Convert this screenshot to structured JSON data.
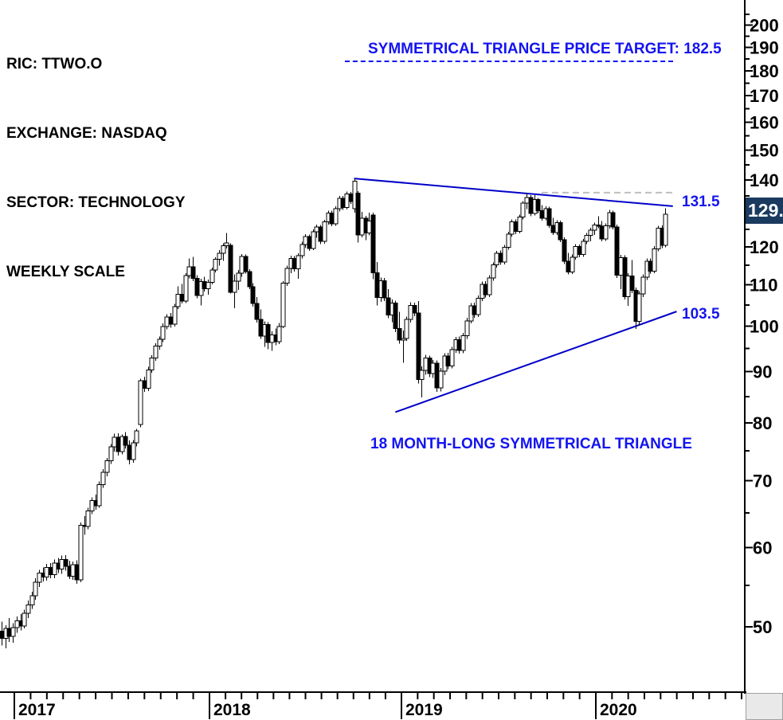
{
  "header": {
    "ric": "RIC: TTWO.O",
    "exchange": "EXCHANGE: NASDAQ",
    "sector": "SECTOR: TECHNOLOGY",
    "scale": "WEEKLY SCALE"
  },
  "annotations": {
    "price_target": "SYMMETRICAL TRIANGLE PRICE TARGET: 182.5",
    "pattern_label": "18 MONTH-LONG SYMMETRICAL TRIANGLE",
    "upper_level_label": "131.5",
    "lower_level_label": "103.5",
    "last_price_tag": "129."
  },
  "colors": {
    "annotation_blue": "#1414f0",
    "trendline_blue": "#0000c8",
    "dashed_grey": "#bfbfbf",
    "axis_black": "#000000",
    "candle_up_fill": "#ffffff",
    "candle_down_fill": "#000000",
    "price_tag_bg": "#1b3a5f",
    "price_tag_text": "#ffffff"
  },
  "chart_data": {
    "type": "candlestick",
    "symbol": "TTWO.O",
    "timeframe": "weekly",
    "title": "TTWO.O weekly candlestick chart with 18 month-long symmetrical triangle",
    "y_axis": {
      "scale": "log",
      "visible_tick_labels": [
        200,
        190,
        180,
        170,
        160,
        150,
        140,
        120,
        110,
        100,
        90,
        80,
        70,
        60,
        50
      ],
      "minor_tick_step": 5,
      "range": [
        46,
        207
      ],
      "last_price": 129.4
    },
    "x_axis": {
      "year_labels": [
        "2017",
        "2018",
        "2019",
        "2020"
      ],
      "weeks_visible": 198,
      "first_candle_approx": "2016-12"
    },
    "grid": false,
    "legend": false,
    "trendlines": [
      {
        "name": "triangle-upper-boundary",
        "from_week": 94,
        "from_price": 140.5,
        "to_week": 179,
        "to_price": 131.8
      },
      {
        "name": "triangle-lower-boundary",
        "from_week": 105,
        "from_price": 82.0,
        "to_week": 180,
        "to_price": 103.4
      }
    ],
    "dashed_resistance": {
      "from_week": 144,
      "to_week": 179,
      "price": 136.0
    },
    "candles_ohlc": [
      [
        49.5,
        50.6,
        47.9,
        48.7
      ],
      [
        48.7,
        50.2,
        47.6,
        49.8
      ],
      [
        49.8,
        51.0,
        48.3,
        48.9
      ],
      [
        48.9,
        50.4,
        48.2,
        49.9
      ],
      [
        49.9,
        51.2,
        49.3,
        50.7
      ],
      [
        50.7,
        51.5,
        49.6,
        50.1
      ],
      [
        50.1,
        52.0,
        49.8,
        51.6
      ],
      [
        51.6,
        53.1,
        51.0,
        52.6
      ],
      [
        52.6,
        54.2,
        52.1,
        53.7
      ],
      [
        53.7,
        55.9,
        53.2,
        55.4
      ],
      [
        55.4,
        57.0,
        54.8,
        56.6
      ],
      [
        56.6,
        57.3,
        55.5,
        56.1
      ],
      [
        56.1,
        57.8,
        55.6,
        57.3
      ],
      [
        57.3,
        57.9,
        55.9,
        56.4
      ],
      [
        56.4,
        58.4,
        55.9,
        57.9
      ],
      [
        57.9,
        58.6,
        56.6,
        57.1
      ],
      [
        57.1,
        58.9,
        56.5,
        58.4
      ],
      [
        58.4,
        59.0,
        56.9,
        57.5
      ],
      [
        57.5,
        58.2,
        55.8,
        56.2
      ],
      [
        56.2,
        58.1,
        55.7,
        57.7
      ],
      [
        57.7,
        58.3,
        55.2,
        55.7
      ],
      [
        55.7,
        63.6,
        55.4,
        63.2
      ],
      [
        63.2,
        64.5,
        61.8,
        63.0
      ],
      [
        63.0,
        65.8,
        62.6,
        65.3
      ],
      [
        65.3,
        67.4,
        64.8,
        66.9
      ],
      [
        66.9,
        67.8,
        65.5,
        66.1
      ],
      [
        66.1,
        69.9,
        65.8,
        69.4
      ],
      [
        69.4,
        71.9,
        68.9,
        71.4
      ],
      [
        71.4,
        73.8,
        70.7,
        73.3
      ],
      [
        73.3,
        76.2,
        72.8,
        75.7
      ],
      [
        75.7,
        78.0,
        74.9,
        77.4
      ],
      [
        77.4,
        78.1,
        74.2,
        74.9
      ],
      [
        74.9,
        77.9,
        74.4,
        77.5
      ],
      [
        77.5,
        78.3,
        75.4,
        76.0
      ],
      [
        76.0,
        76.8,
        72.7,
        73.5
      ],
      [
        73.5,
        76.9,
        73.0,
        76.4
      ],
      [
        76.4,
        78.9,
        75.8,
        78.5
      ],
      [
        79.7,
        88.6,
        79.2,
        88.2
      ],
      [
        88.2,
        89.0,
        85.9,
        86.6
      ],
      [
        86.6,
        91.0,
        86.1,
        90.4
      ],
      [
        90.4,
        93.5,
        89.8,
        92.9
      ],
      [
        92.9,
        96.1,
        92.3,
        95.5
      ],
      [
        95.5,
        97.6,
        94.7,
        97.0
      ],
      [
        97.0,
        100.6,
        96.4,
        99.9
      ],
      [
        99.9,
        102.8,
        99.2,
        102.1
      ],
      [
        102.1,
        103.0,
        99.6,
        100.4
      ],
      [
        100.4,
        105.2,
        99.9,
        104.6
      ],
      [
        104.6,
        109.6,
        104.0,
        107.6
      ],
      [
        107.6,
        110.2,
        105.3,
        105.9
      ],
      [
        105.9,
        113.0,
        105.4,
        112.3
      ],
      [
        112.3,
        116.9,
        111.6,
        114.6
      ],
      [
        114.6,
        117.3,
        110.9,
        111.6
      ],
      [
        111.6,
        112.4,
        106.6,
        107.3
      ],
      [
        107.3,
        111.5,
        104.9,
        110.8
      ],
      [
        110.8,
        112.0,
        108.3,
        109.0
      ],
      [
        109.0,
        111.3,
        107.5,
        110.6
      ],
      [
        110.6,
        114.4,
        110.1,
        113.8
      ],
      [
        113.8,
        117.2,
        113.2,
        116.6
      ],
      [
        116.6,
        119.1,
        114.9,
        118.3
      ],
      [
        118.3,
        121.0,
        116.2,
        120.3
      ],
      [
        120.3,
        123.9,
        119.6,
        121.1
      ],
      [
        120.4,
        121.0,
        107.8,
        108.1
      ],
      [
        108.1,
        112.6,
        104.2,
        110.9
      ],
      [
        110.9,
        113.8,
        108.7,
        112.9
      ],
      [
        112.9,
        118.0,
        112.0,
        117.4
      ],
      [
        117.4,
        117.9,
        112.8,
        113.4
      ],
      [
        113.4,
        114.0,
        108.9,
        109.5
      ],
      [
        109.5,
        110.4,
        104.6,
        105.3
      ],
      [
        105.3,
        106.9,
        100.8,
        101.5
      ],
      [
        101.5,
        103.9,
        97.1,
        97.7
      ],
      [
        97.7,
        101.1,
        95.3,
        100.3
      ],
      [
        100.3,
        100.9,
        94.8,
        96.3
      ],
      [
        96.3,
        98.8,
        94.4,
        98.0
      ],
      [
        98.0,
        99.4,
        95.7,
        96.5
      ],
      [
        96.5,
        100.7,
        95.9,
        99.9
      ],
      [
        99.9,
        110.9,
        99.5,
        110.4
      ],
      [
        110.4,
        114.9,
        109.7,
        114.2
      ],
      [
        114.2,
        117.6,
        112.9,
        116.9
      ],
      [
        116.9,
        117.5,
        113.4,
        114.1
      ],
      [
        114.1,
        118.2,
        111.5,
        117.6
      ],
      [
        117.6,
        121.4,
        116.8,
        120.7
      ],
      [
        120.7,
        123.6,
        119.8,
        122.9
      ],
      [
        122.9,
        123.5,
        118.9,
        119.6
      ],
      [
        119.6,
        124.9,
        119.1,
        124.3
      ],
      [
        124.3,
        126.3,
        122.6,
        125.6
      ],
      [
        125.6,
        126.2,
        120.8,
        121.5
      ],
      [
        121.5,
        127.7,
        120.9,
        127.1
      ],
      [
        127.1,
        130.4,
        126.3,
        129.7
      ],
      [
        129.7,
        130.5,
        125.9,
        126.6
      ],
      [
        126.6,
        131.8,
        126.0,
        131.1
      ],
      [
        131.1,
        134.9,
        130.2,
        134.2
      ],
      [
        134.2,
        135.0,
        130.7,
        131.4
      ],
      [
        131.4,
        136.3,
        130.8,
        135.6
      ],
      [
        135.6,
        136.2,
        132.5,
        133.2
      ],
      [
        131.0,
        140.3,
        129.8,
        139.6
      ],
      [
        135.8,
        136.4,
        121.2,
        123.4
      ],
      [
        123.4,
        130.1,
        122.7,
        128.2
      ],
      [
        128.2,
        128.9,
        121.9,
        123.9
      ],
      [
        123.9,
        129.9,
        123.2,
        127.4
      ],
      [
        129.2,
        129.8,
        111.4,
        113.1
      ],
      [
        113.1,
        115.9,
        104.9,
        106.8
      ],
      [
        106.8,
        111.8,
        105.7,
        111.0
      ],
      [
        111.0,
        111.7,
        105.9,
        106.7
      ],
      [
        106.7,
        108.9,
        101.8,
        102.6
      ],
      [
        102.6,
        106.3,
        100.9,
        105.4
      ],
      [
        105.4,
        106.0,
        98.6,
        99.4
      ],
      [
        99.4,
        103.3,
        96.0,
        96.8
      ],
      [
        96.8,
        99.0,
        91.9,
        97.2
      ],
      [
        97.2,
        102.2,
        96.6,
        101.5
      ],
      [
        101.5,
        105.6,
        100.8,
        104.9
      ],
      [
        104.9,
        105.5,
        102.3,
        103.0
      ],
      [
        103.0,
        105.9,
        87.6,
        88.4
      ],
      [
        88.4,
        91.1,
        84.8,
        90.3
      ],
      [
        90.3,
        93.6,
        89.4,
        92.9
      ],
      [
        92.9,
        93.4,
        88.9,
        89.6
      ],
      [
        89.6,
        92.5,
        88.7,
        91.8
      ],
      [
        91.8,
        92.4,
        85.9,
        86.7
      ],
      [
        86.7,
        90.8,
        86.0,
        90.1
      ],
      [
        90.1,
        93.9,
        89.3,
        93.3
      ],
      [
        93.3,
        94.0,
        90.5,
        91.2
      ],
      [
        91.2,
        95.3,
        90.7,
        94.7
      ],
      [
        94.7,
        97.5,
        94.0,
        96.9
      ],
      [
        96.9,
        97.6,
        93.8,
        94.5
      ],
      [
        94.5,
        98.4,
        93.9,
        97.8
      ],
      [
        97.8,
        101.9,
        97.1,
        101.2
      ],
      [
        101.2,
        105.4,
        100.6,
        104.8
      ],
      [
        104.8,
        105.5,
        101.9,
        102.7
      ],
      [
        102.7,
        107.3,
        102.1,
        106.6
      ],
      [
        106.6,
        110.8,
        105.9,
        110.1
      ],
      [
        110.1,
        110.9,
        106.8,
        107.5
      ],
      [
        107.5,
        112.4,
        106.9,
        111.7
      ],
      [
        111.7,
        115.8,
        111.0,
        115.1
      ],
      [
        115.1,
        118.9,
        114.4,
        118.2
      ],
      [
        118.2,
        119.0,
        115.2,
        115.9
      ],
      [
        115.9,
        120.6,
        115.3,
        119.9
      ],
      [
        119.9,
        124.3,
        119.2,
        123.6
      ],
      [
        123.6,
        127.8,
        122.9,
        127.1
      ],
      [
        127.1,
        127.9,
        123.6,
        124.4
      ],
      [
        124.4,
        129.3,
        123.8,
        128.6
      ],
      [
        128.6,
        133.4,
        127.9,
        132.7
      ],
      [
        132.7,
        135.8,
        130.9,
        134.5
      ],
      [
        134.5,
        135.2,
        128.8,
        129.6
      ],
      [
        129.6,
        135.2,
        129.0,
        133.8
      ],
      [
        133.8,
        134.4,
        129.7,
        130.4
      ],
      [
        130.4,
        132.2,
        127.5,
        128.2
      ],
      [
        128.2,
        131.8,
        127.6,
        131.1
      ],
      [
        131.1,
        131.7,
        125.4,
        126.1
      ],
      [
        126.1,
        128.3,
        123.3,
        124.0
      ],
      [
        124.0,
        127.6,
        123.4,
        126.9
      ],
      [
        126.9,
        127.5,
        121.3,
        122.0
      ],
      [
        122.0,
        122.7,
        115.4,
        116.1
      ],
      [
        116.1,
        118.4,
        112.6,
        113.3
      ],
      [
        113.3,
        117.9,
        112.7,
        117.2
      ],
      [
        117.2,
        120.8,
        116.5,
        120.1
      ],
      [
        120.1,
        120.7,
        117.2,
        117.9
      ],
      [
        117.9,
        122.2,
        117.3,
        121.5
      ],
      [
        121.5,
        123.9,
        120.8,
        123.2
      ],
      [
        123.2,
        125.4,
        121.6,
        124.7
      ],
      [
        124.7,
        126.9,
        123.4,
        126.2
      ],
      [
        126.2,
        128.8,
        125.3,
        125.9
      ],
      [
        125.9,
        127.4,
        121.5,
        122.2
      ],
      [
        122.2,
        126.7,
        121.7,
        126.0
      ],
      [
        126.0,
        130.7,
        125.2,
        129.9
      ],
      [
        129.9,
        130.5,
        124.9,
        125.6
      ],
      [
        125.6,
        126.3,
        111.7,
        112.4
      ],
      [
        112.4,
        117.8,
        108.9,
        117.1
      ],
      [
        117.1,
        117.7,
        106.3,
        107.0
      ],
      [
        107.0,
        112.9,
        104.8,
        112.2
      ],
      [
        112.2,
        116.4,
        107.9,
        108.6
      ],
      [
        108.6,
        109.3,
        99.3,
        101.1
      ],
      [
        101.1,
        108.4,
        100.2,
        107.7
      ],
      [
        107.7,
        112.6,
        106.9,
        111.9
      ],
      [
        111.9,
        116.8,
        111.2,
        116.1
      ],
      [
        116.1,
        116.9,
        112.8,
        113.5
      ],
      [
        113.5,
        120.2,
        112.9,
        119.5
      ],
      [
        119.5,
        126.0,
        118.8,
        125.3
      ],
      [
        125.3,
        126.1,
        119.7,
        120.4
      ],
      [
        120.4,
        131.2,
        119.9,
        129.4
      ]
    ]
  }
}
